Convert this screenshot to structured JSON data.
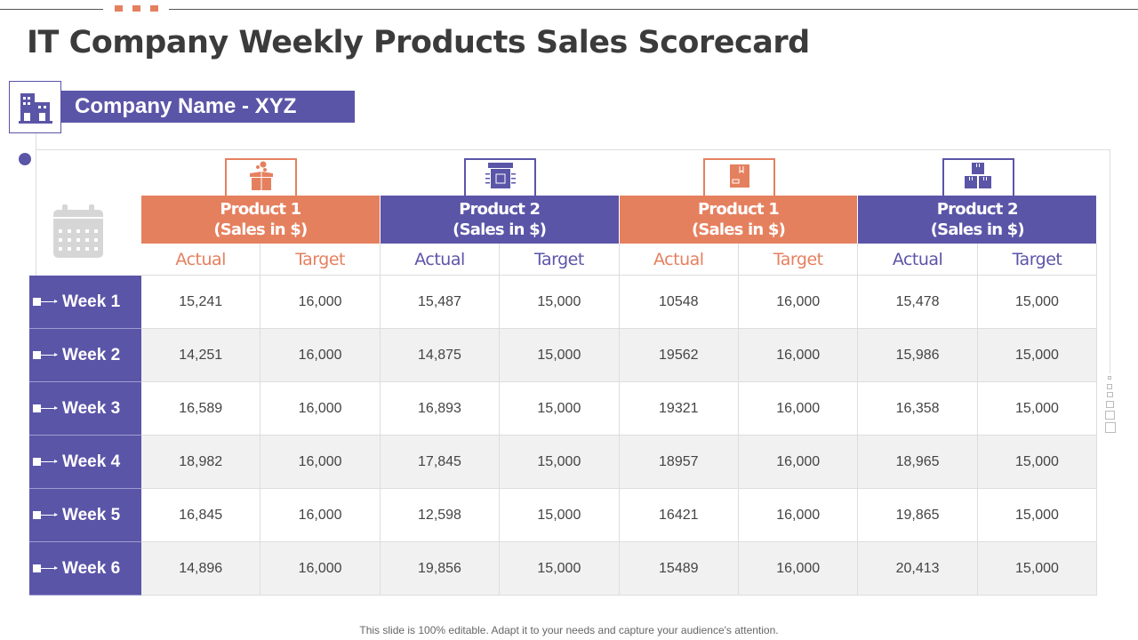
{
  "title": "IT Company Weekly Products Sales Scorecard",
  "company": "Company Name - XYZ",
  "colors": {
    "orange": "#e5805f",
    "purple": "#5b55a8"
  },
  "groups": [
    {
      "label1": "Product 1",
      "label2": "(Sales in $)",
      "color": "orange",
      "icon": "gift-box-icon"
    },
    {
      "label1": "Product 2",
      "label2": "(Sales in $)",
      "color": "purple",
      "icon": "server-box-icon"
    },
    {
      "label1": "Product 1",
      "label2": "(Sales in $)",
      "color": "orange",
      "icon": "package-icon"
    },
    {
      "label1": "Product 2",
      "label2": "(Sales in $)",
      "color": "purple",
      "icon": "stacked-boxes-icon"
    }
  ],
  "sub_headers": [
    "Actual",
    "Target"
  ],
  "rows": [
    {
      "week": "Week 1",
      "values": [
        "15,241",
        "16,000",
        "15,487",
        "15,000",
        "10548",
        "16,000",
        "15,478",
        "15,000"
      ]
    },
    {
      "week": "Week 2",
      "values": [
        "14,251",
        "16,000",
        "14,875",
        "15,000",
        "19562",
        "16,000",
        "15,986",
        "15,000"
      ]
    },
    {
      "week": "Week 3",
      "values": [
        "16,589",
        "16,000",
        "16,893",
        "15,000",
        "19321",
        "16,000",
        "16,358",
        "15,000"
      ]
    },
    {
      "week": "Week 4",
      "values": [
        "18,982",
        "16,000",
        "17,845",
        "15,000",
        "18957",
        "16,000",
        "18,965",
        "15,000"
      ]
    },
    {
      "week": "Week 5",
      "values": [
        "16,845",
        "16,000",
        "12,598",
        "15,000",
        "16421",
        "16,000",
        "19,865",
        "15,000"
      ]
    },
    {
      "week": "Week 6",
      "values": [
        "14,896",
        "16,000",
        "19,856",
        "15,000",
        "15489",
        "16,000",
        "20,413",
        "15,000"
      ]
    }
  ],
  "footer": "This slide is 100% editable. Adapt it to your needs and capture your audience's attention."
}
